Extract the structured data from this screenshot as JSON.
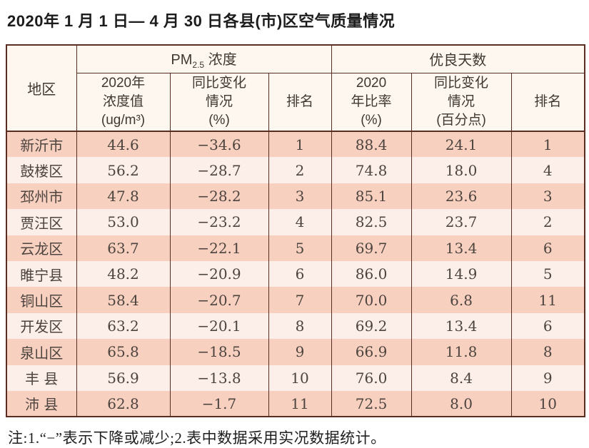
{
  "title": "2020年 1 月 1 日— 4 月 30 日各县(市)区空气质量情况",
  "colors": {
    "border": "#5a2d23",
    "row_dark": "#f8d0c0",
    "row_light": "#fceee8",
    "header_bg": "#fdf7ef"
  },
  "table": {
    "header": {
      "region": "地区",
      "pm_prefix": "PM",
      "pm_sub": "2.5",
      "pm_suffix": " 浓度",
      "good_group": "优良天数",
      "pm_value": "2020年\n浓度值\n(ug/m³)",
      "pm_change": "同比变化\n情况\n(%)",
      "pm_rank": "排名",
      "good_ratio": "2020\n年比率\n(%)",
      "good_change": "同比变化\n情况\n(百分点)",
      "good_rank": "排名"
    },
    "rows": [
      {
        "region": "新沂市",
        "pm_value": "44.6",
        "pm_change": "−34.6",
        "pm_rank": "1",
        "good_ratio": "88.4",
        "good_change": "24.1",
        "good_rank": "1"
      },
      {
        "region": "鼓楼区",
        "pm_value": "56.2",
        "pm_change": "−28.7",
        "pm_rank": "2",
        "good_ratio": "74.8",
        "good_change": "18.0",
        "good_rank": "4"
      },
      {
        "region": "邳州市",
        "pm_value": "47.8",
        "pm_change": "−28.2",
        "pm_rank": "3",
        "good_ratio": "85.1",
        "good_change": "23.6",
        "good_rank": "3"
      },
      {
        "region": "贾汪区",
        "pm_value": "53.0",
        "pm_change": "−23.2",
        "pm_rank": "4",
        "good_ratio": "82.5",
        "good_change": "23.7",
        "good_rank": "2"
      },
      {
        "region": "云龙区",
        "pm_value": "63.7",
        "pm_change": "−22.1",
        "pm_rank": "5",
        "good_ratio": "69.7",
        "good_change": "13.4",
        "good_rank": "6"
      },
      {
        "region": "睢宁县",
        "pm_value": "48.2",
        "pm_change": "−20.9",
        "pm_rank": "6",
        "good_ratio": "86.0",
        "good_change": "14.9",
        "good_rank": "5"
      },
      {
        "region": "铜山区",
        "pm_value": "58.4",
        "pm_change": "−20.7",
        "pm_rank": "7",
        "good_ratio": "70.0",
        "good_change": "6.8",
        "good_rank": "11"
      },
      {
        "region": "开发区",
        "pm_value": "63.2",
        "pm_change": "−20.1",
        "pm_rank": "8",
        "good_ratio": "69.2",
        "good_change": "13.4",
        "good_rank": "6"
      },
      {
        "region": "泉山区",
        "pm_value": "65.8",
        "pm_change": "−18.5",
        "pm_rank": "9",
        "good_ratio": "66.9",
        "good_change": "11.8",
        "good_rank": "8"
      },
      {
        "region": "丰 县",
        "pm_value": "56.9",
        "pm_change": "−13.8",
        "pm_rank": "10",
        "good_ratio": "76.0",
        "good_change": "8.4",
        "good_rank": "9"
      },
      {
        "region": "沛 县",
        "pm_value": "62.8",
        "pm_change": "−1.7",
        "pm_rank": "11",
        "good_ratio": "72.5",
        "good_change": "8.0",
        "good_rank": "10"
      }
    ]
  },
  "footnote": "注:1.“−”表示下降或减少;2.表中数据采用实况数据统计。"
}
